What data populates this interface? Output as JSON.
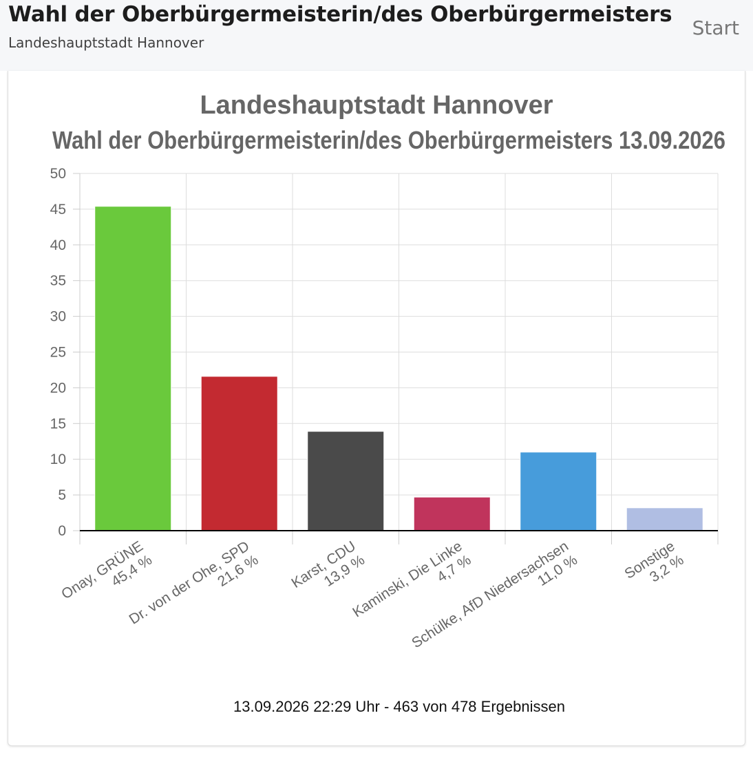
{
  "header": {
    "title": "Wahl der Oberbürgermeisterin/des Oberbürgermeisters",
    "subtitle": "Landeshauptstadt Hannover",
    "start_label": "Start"
  },
  "chart_data": {
    "type": "bar",
    "title": "Landeshauptstadt Hannover",
    "subtitle": "Wahl der Oberbürgermeisterin/des Oberbürgermeisters 13.09.2026",
    "categories": [
      [
        "Onay, GRÜNE",
        "45,4 %"
      ],
      [
        "Dr. von der Ohe, SPD",
        "21,6 %"
      ],
      [
        "Karst, CDU",
        "13,9 %"
      ],
      [
        "Kaminski, Die Linke",
        "4,7 %"
      ],
      [
        "Schülke, AfD Niedersachsen",
        "11,0 %"
      ],
      [
        "Sonstige",
        "3,2 %"
      ]
    ],
    "values": [
      45.4,
      21.6,
      13.9,
      4.7,
      11.0,
      3.2
    ],
    "colors": [
      "#6ac93c",
      "#c32a31",
      "#4a4a4a",
      "#c0345c",
      "#479cdb",
      "#b0bee3"
    ],
    "ylim": [
      0,
      50
    ],
    "yticks": [
      0,
      5,
      10,
      15,
      20,
      25,
      30,
      35,
      40,
      45,
      50
    ],
    "grid": true,
    "xlabel": "",
    "ylabel": ""
  },
  "footer": {
    "status_text": "13.09.2026 22:29 Uhr - 463 von 478 Ergebnissen"
  }
}
